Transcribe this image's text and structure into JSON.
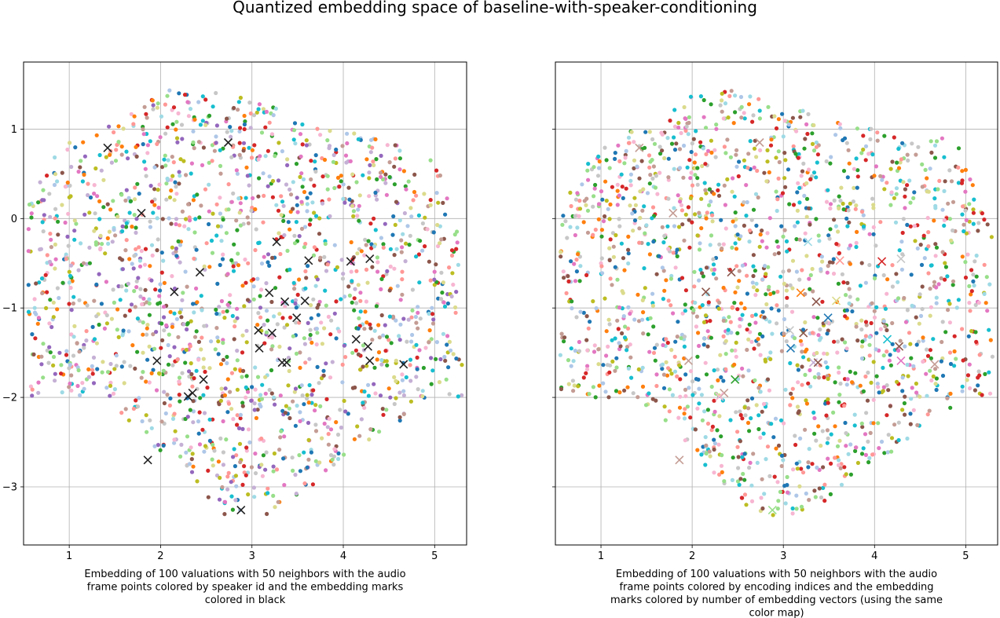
{
  "figure": {
    "title": "Quantized embedding space of baseline-with-speaker-conditioning"
  },
  "chart_data": [
    {
      "type": "scatter",
      "subplot": "left",
      "xlabel": "Embedding of 100 valuations with 50 neighbors with the audio frame points colored by speaker id and the embedding marks colored in black",
      "xlabel_lines": [
        "Embedding of 100 valuations with 50 neighbors with the audio",
        "frame points colored by speaker id and the embedding marks",
        "colored in black"
      ],
      "ylabel": "",
      "xlim": [
        0.5,
        5.35
      ],
      "ylim": [
        -3.65,
        1.75
      ],
      "xticks": [
        1,
        2,
        3,
        4,
        5
      ],
      "yticks": [
        1,
        0,
        -1,
        -2,
        -3
      ],
      "grid": true,
      "point_coloring": "speaker id",
      "frame_point_count_estimate": 1800,
      "frame_point_colors": [
        "#1f77b4",
        "#ff7f0e",
        "#2ca02c",
        "#d62728",
        "#9467bd",
        "#8c564b",
        "#e377c2",
        "#bcbd22",
        "#17becf",
        "#aec7e8",
        "#98df8a",
        "#ff9896",
        "#c5b0d5",
        "#c49c94",
        "#f7b6d2",
        "#dbdb8d",
        "#9edae5",
        "#c7c7c7"
      ],
      "embedding_marks": {
        "marker": "x",
        "color": "#222222",
        "points": [
          [
            1.42,
            0.79
          ],
          [
            2.74,
            0.85
          ],
          [
            1.79,
            0.06
          ],
          [
            3.27,
            -0.26
          ],
          [
            3.62,
            -0.47
          ],
          [
            4.08,
            -0.48
          ],
          [
            4.29,
            -0.45
          ],
          [
            2.15,
            -0.82
          ],
          [
            2.43,
            -0.6
          ],
          [
            3.19,
            -0.83
          ],
          [
            3.36,
            -0.93
          ],
          [
            3.58,
            -0.92
          ],
          [
            3.49,
            -1.11
          ],
          [
            3.07,
            -1.25
          ],
          [
            3.22,
            -1.28
          ],
          [
            3.08,
            -1.45
          ],
          [
            4.14,
            -1.35
          ],
          [
            4.27,
            -1.43
          ],
          [
            4.29,
            -1.59
          ],
          [
            3.33,
            -1.61
          ],
          [
            3.38,
            -1.61
          ],
          [
            4.66,
            -1.63
          ],
          [
            1.96,
            -1.59
          ],
          [
            2.47,
            -1.8
          ],
          [
            2.35,
            -1.95
          ],
          [
            2.3,
            -1.99
          ],
          [
            1.86,
            -2.7
          ],
          [
            2.88,
            -3.26
          ]
        ]
      }
    },
    {
      "type": "scatter",
      "subplot": "right",
      "xlabel": "Embedding of 100 valuations with 50 neighbors with the audio frame points colored by encoding indices and the embedding marks colored by number of embedding vectors (using the same color map)",
      "xlabel_lines": [
        "Embedding of 100 valuations with 50 neighbors with the audio",
        "frame points colored by encoding indices and the embedding",
        "marks colored by number of embedding vectors (using the same",
        "color map)"
      ],
      "ylabel": "",
      "xlim": [
        0.5,
        5.35
      ],
      "ylim": [
        -3.65,
        1.75
      ],
      "xticks": [
        1,
        2,
        3,
        4,
        5
      ],
      "yticks": [
        1,
        0,
        -1,
        -2,
        -3
      ],
      "grid": true,
      "point_coloring": "encoding indices",
      "frame_point_count_estimate": 1800,
      "frame_point_colors": [
        "#d62728",
        "#8c564b",
        "#f7b6d2",
        "#e377c2",
        "#ff9896",
        "#9edae5",
        "#98df8a",
        "#c7c7c7",
        "#dbdb8d",
        "#c49c94",
        "#1f77b4",
        "#2ca02c",
        "#ff7f0e",
        "#17becf",
        "#bcbd22",
        "#aec7e8"
      ],
      "embedding_marks": {
        "marker": "x",
        "color_by": "number of embedding vectors",
        "points": [
          {
            "x": 1.42,
            "y": 0.79,
            "color": "#c49c94"
          },
          {
            "x": 2.74,
            "y": 0.85,
            "color": "#c49c94"
          },
          {
            "x": 1.79,
            "y": 0.06,
            "color": "#c49c94"
          },
          {
            "x": 3.27,
            "y": -0.26,
            "color": "#9edae5"
          },
          {
            "x": 3.62,
            "y": -0.47,
            "color": "#ff9896"
          },
          {
            "x": 4.08,
            "y": -0.48,
            "color": "#d62728"
          },
          {
            "x": 4.29,
            "y": -0.45,
            "color": "#c7c7c7"
          },
          {
            "x": 2.15,
            "y": -0.82,
            "color": "#8c564b"
          },
          {
            "x": 2.43,
            "y": -0.6,
            "color": "#8c564b"
          },
          {
            "x": 3.19,
            "y": -0.83,
            "color": "#ff7f0e"
          },
          {
            "x": 3.36,
            "y": -0.93,
            "color": "#8c564b"
          },
          {
            "x": 3.58,
            "y": -0.92,
            "color": "#dbdb8d"
          },
          {
            "x": 3.49,
            "y": -1.11,
            "color": "#1f77b4"
          },
          {
            "x": 3.07,
            "y": -1.25,
            "color": "#c7c7c7"
          },
          {
            "x": 3.22,
            "y": -1.28,
            "color": "#8c564b"
          },
          {
            "x": 3.08,
            "y": -1.45,
            "color": "#1f77b4"
          },
          {
            "x": 4.14,
            "y": -1.35,
            "color": "#17becf"
          },
          {
            "x": 4.27,
            "y": -1.43,
            "color": "#8c564b"
          },
          {
            "x": 4.29,
            "y": -1.59,
            "color": "#e377c2"
          },
          {
            "x": 3.33,
            "y": -1.61,
            "color": "#c5b0d5"
          },
          {
            "x": 3.38,
            "y": -1.61,
            "color": "#8c564b"
          },
          {
            "x": 4.66,
            "y": -1.63,
            "color": "#c49c94"
          },
          {
            "x": 1.96,
            "y": -1.59,
            "color": "#c49c94"
          },
          {
            "x": 2.47,
            "y": -1.8,
            "color": "#2ca02c"
          },
          {
            "x": 2.35,
            "y": -1.95,
            "color": "#c49c94"
          },
          {
            "x": 2.3,
            "y": -1.99,
            "color": "#f7b6d2"
          },
          {
            "x": 1.86,
            "y": -2.7,
            "color": "#c49c94"
          },
          {
            "x": 2.88,
            "y": -3.26,
            "color": "#98df8a"
          }
        ]
      }
    }
  ]
}
